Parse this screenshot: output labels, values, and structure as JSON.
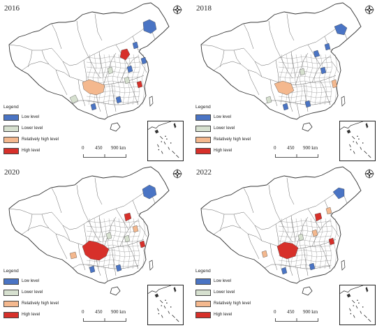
{
  "colors": {
    "low_level": "#4a74c4",
    "lower_level": "#d6e0cf",
    "relatively_high_level": "#f4b88e",
    "high_level": "#d7302a",
    "base_fill": "#ffffff",
    "boundary": "#333333"
  },
  "legend": {
    "title": "Legend",
    "items": [
      {
        "key": "low_level",
        "label": "Low level",
        "color": "#4a74c4"
      },
      {
        "key": "lower_level",
        "label": "Lower level",
        "color": "#d6e0cf"
      },
      {
        "key": "relatively_high_level",
        "label": "Relatively high level",
        "color": "#f4b88e"
      },
      {
        "key": "high_level",
        "label": "High level",
        "color": "#d7302a"
      }
    ]
  },
  "scale_bar": {
    "labels": [
      "0",
      "450",
      "900 km"
    ]
  },
  "compass_icon": "north-arrow-icon",
  "panels": [
    {
      "year": "2016"
    },
    {
      "year": "2018"
    },
    {
      "year": "2020"
    },
    {
      "year": "2022"
    }
  ]
}
